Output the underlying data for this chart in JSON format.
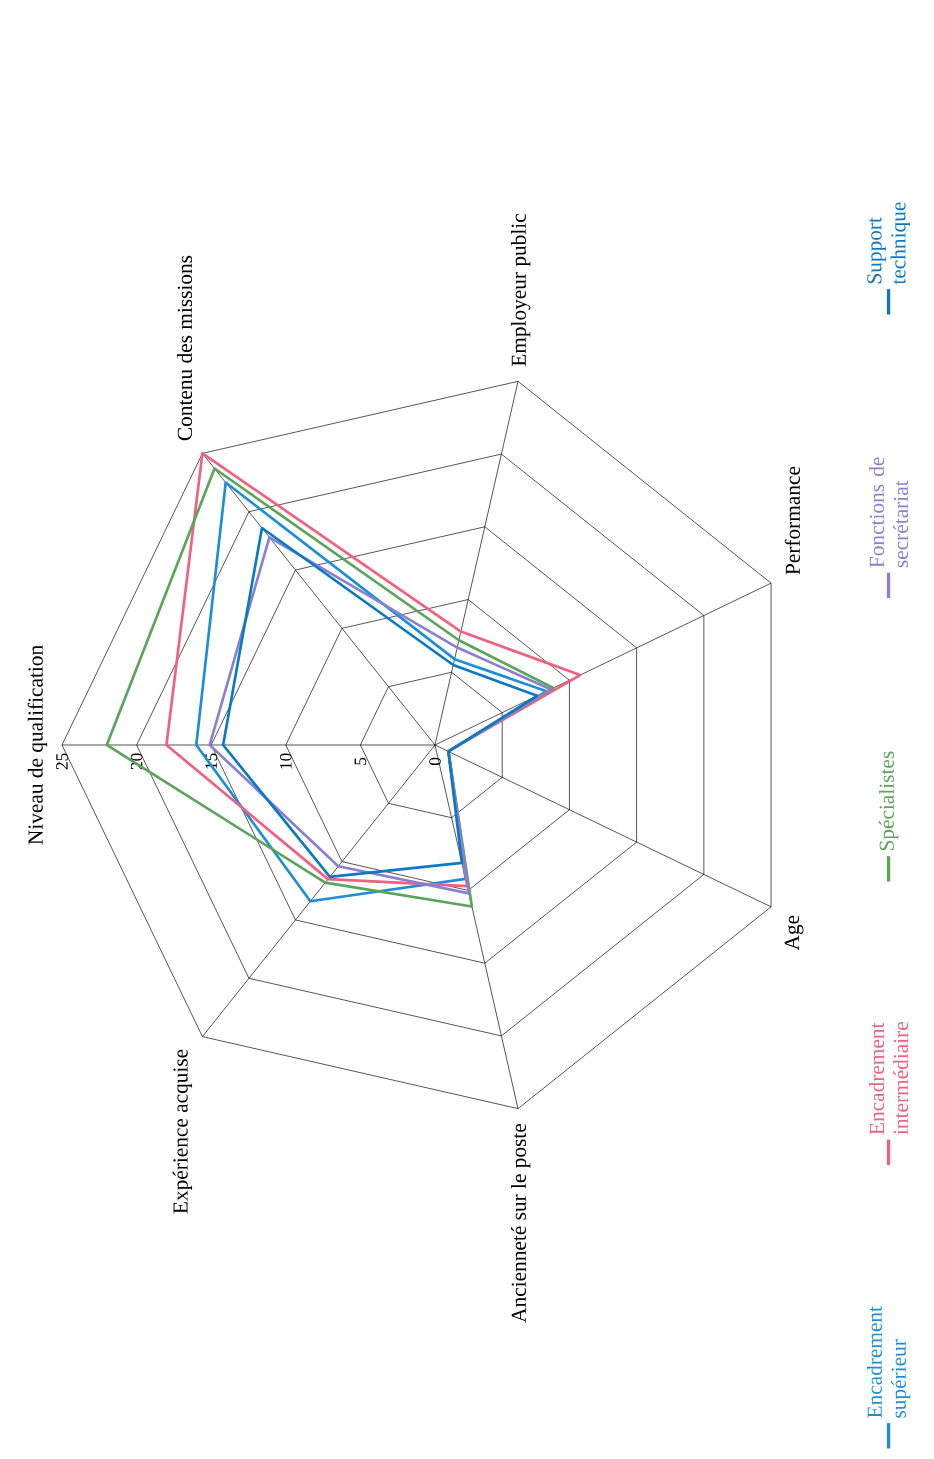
{
  "chart_data": {
    "type": "radar",
    "categories": [
      "Niveau de qualification",
      "Contenu des missions",
      "Employeur  public",
      "Performance",
      "Age",
      "Ancienneté sur le poste",
      "Expérience  acquise"
    ],
    "series": [
      {
        "name": "Encadrement supérieur",
        "color": "#1a8fd8",
        "values": [
          16,
          22.5,
          5.9,
          8.3,
          1,
          9.2,
          13.4
        ]
      },
      {
        "name": "Encadrement intermédiaire",
        "color": "#f0607f",
        "values": [
          18,
          25,
          7.8,
          10.8,
          1,
          9.7,
          11.5
        ]
      },
      {
        "name": "Spécialistes",
        "color": "#5aa55a",
        "values": [
          22,
          23.7,
          7.2,
          8.8,
          1,
          11.1,
          11.8
        ]
      },
      {
        "name": "Fonctions de secrétariat",
        "color": "#8a80d0",
        "values": [
          15.1,
          17.8,
          6.7,
          8.6,
          1,
          10.2,
          10.4
        ]
      },
      {
        "name": "Support technique",
        "color": "#0b78c4",
        "values": [
          14.2,
          18.6,
          5.5,
          7.6,
          1,
          8.1,
          11.3
        ]
      }
    ],
    "ylim": [
      0,
      25
    ],
    "yticks": [
      0,
      5,
      10,
      15,
      20,
      25
    ],
    "grid": true,
    "legend": "bottom"
  }
}
